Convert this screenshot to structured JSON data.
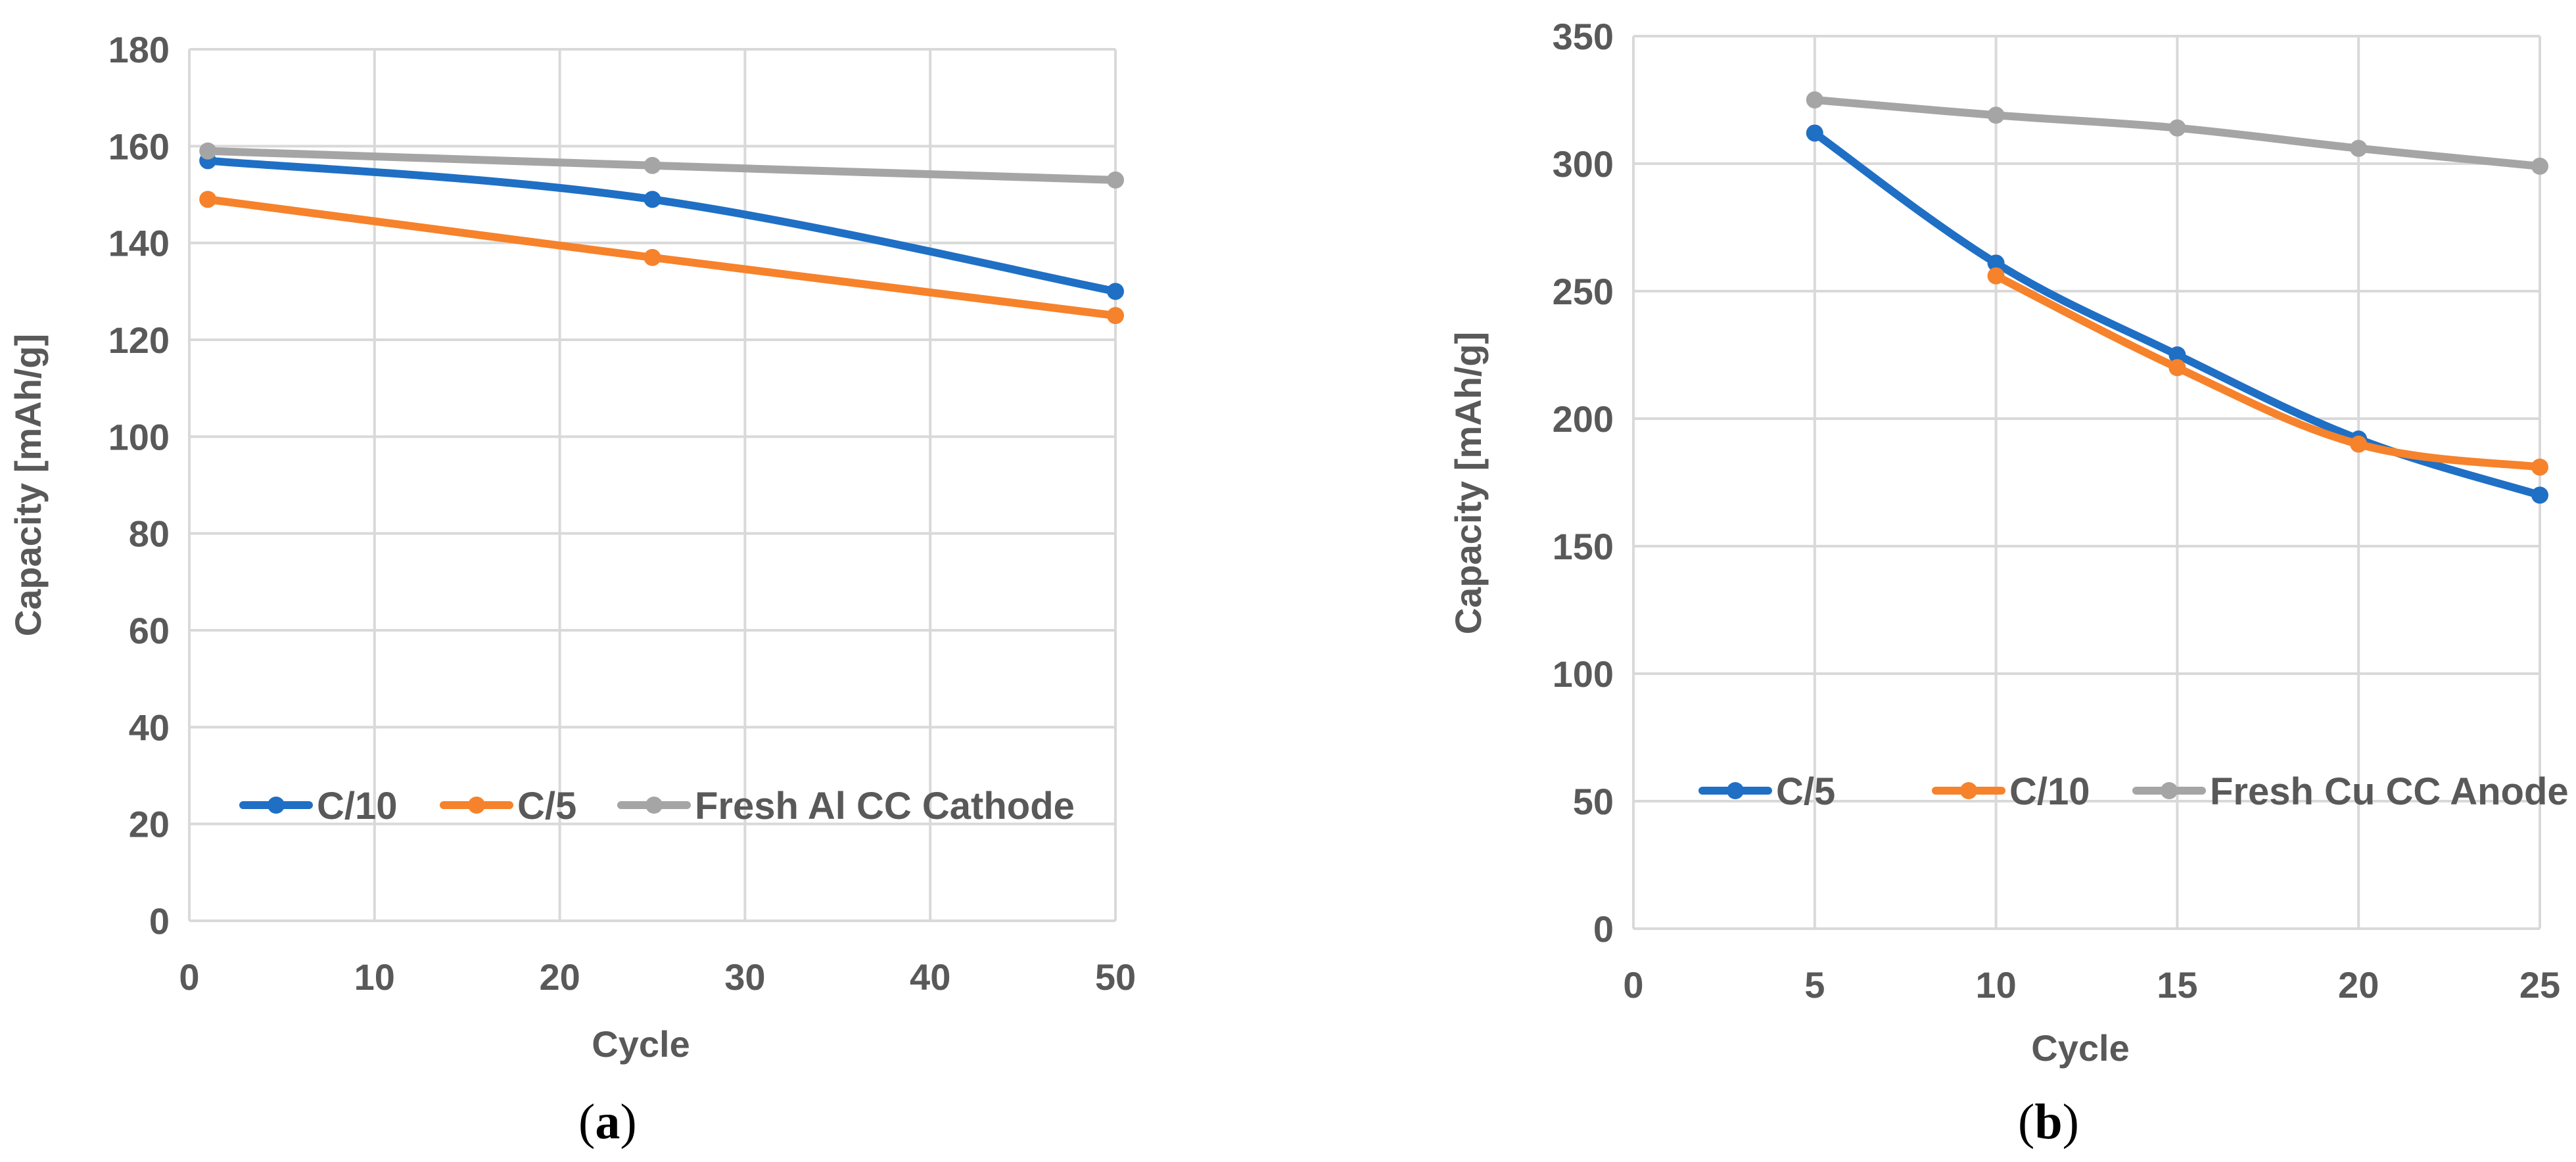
{
  "chart_data": [
    {
      "id": "a",
      "type": "line",
      "panel_label": "a",
      "xlabel": "Cycle",
      "ylabel": "Capacity [mAh/g]",
      "xlim": [
        0,
        50
      ],
      "ylim": [
        0,
        180
      ],
      "xticks": [
        0,
        10,
        20,
        30,
        40,
        50
      ],
      "yticks": [
        0,
        20,
        40,
        60,
        80,
        100,
        120,
        140,
        160,
        180
      ],
      "grid": true,
      "legend_position": "bottom-left",
      "series": [
        {
          "name": "C/10",
          "color": "#1f6fc5",
          "x": [
            1,
            25,
            50
          ],
          "y": [
            157,
            149,
            130
          ]
        },
        {
          "name": "C/5",
          "color": "#f6822b",
          "x": [
            1,
            25,
            50
          ],
          "y": [
            149,
            137,
            125
          ]
        },
        {
          "name": "Fresh Al CC Cathode",
          "color": "#a5a5a5",
          "x": [
            1,
            25,
            50
          ],
          "y": [
            159,
            156,
            153
          ]
        }
      ]
    },
    {
      "id": "b",
      "type": "line",
      "panel_label": "b",
      "xlabel": "Cycle",
      "ylabel": "Capacity [mAh/g]",
      "xlim": [
        0,
        25
      ],
      "ylim": [
        0,
        350
      ],
      "xticks": [
        0,
        5,
        10,
        15,
        20,
        25
      ],
      "yticks": [
        0,
        50,
        100,
        150,
        200,
        250,
        300,
        350
      ],
      "grid": true,
      "legend_position": "bottom-left",
      "series": [
        {
          "name": "C/5",
          "color": "#1f6fc5",
          "x": [
            5,
            10,
            15,
            20,
            25
          ],
          "y": [
            312,
            261,
            225,
            192,
            170
          ]
        },
        {
          "name": "C/10",
          "color": "#f6822b",
          "x": [
            10,
            15,
            20,
            25
          ],
          "y": [
            256,
            220,
            190,
            181
          ]
        },
        {
          "name": "Fresh Cu CC Anode",
          "color": "#a5a5a5",
          "x": [
            5,
            10,
            15,
            20,
            25
          ],
          "y": [
            325,
            319,
            314,
            306,
            299
          ]
        }
      ]
    }
  ]
}
